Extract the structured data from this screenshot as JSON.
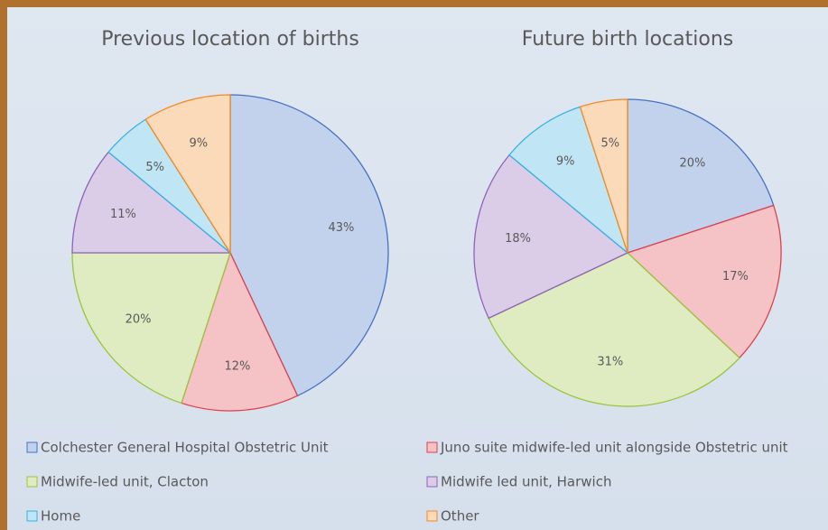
{
  "legend": {
    "categories": [
      "Colchester General Hospital Obstetric Unit",
      "Juno suite midwife-led unit alongside Obstetric unit",
      "Midwife-led unit, Clacton",
      "Midwife led unit, Harwich",
      "Home",
      "Other"
    ],
    "colors": [
      "#4472c4",
      "#e0404b",
      "#9bc53d",
      "#8e63b8",
      "#3ab0e0",
      "#f08a24"
    ]
  },
  "chart_data": [
    {
      "type": "pie",
      "title": "Previous location of births",
      "values": [
        43,
        12,
        20,
        11,
        5,
        9
      ],
      "value_labels": [
        "43%",
        "12%",
        "20%",
        "11%",
        "5%",
        "9%"
      ]
    },
    {
      "type": "pie",
      "title": "Future birth locations",
      "values": [
        20,
        17,
        31,
        18,
        9,
        5
      ],
      "value_labels": [
        "20%",
        "17%",
        "31%",
        "18%",
        "9%",
        "5%"
      ]
    }
  ]
}
